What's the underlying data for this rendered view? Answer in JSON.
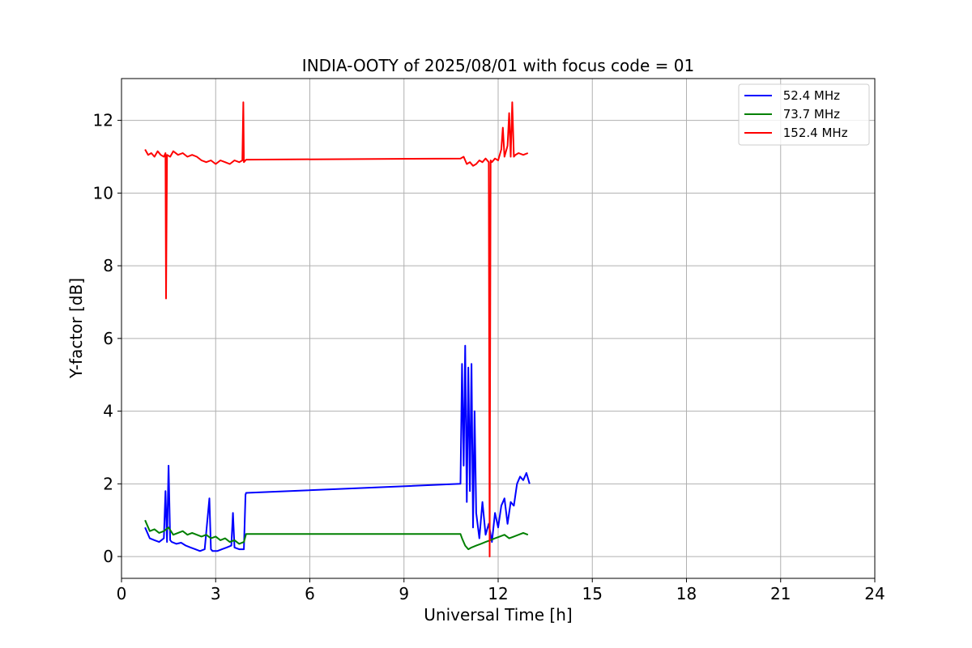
{
  "chart_data": {
    "type": "line",
    "title": "INDIA-OOTY of 2025/08/01 with focus code = 01",
    "xlabel": "Universal Time [h]",
    "ylabel": "Y-factor [dB]",
    "xlim": [
      0,
      24
    ],
    "ylim": [
      -0.6,
      13.15
    ],
    "xticks": [
      0,
      3,
      6,
      9,
      12,
      15,
      18,
      21,
      24
    ],
    "yticks": [
      0,
      2,
      4,
      6,
      8,
      10,
      12
    ],
    "grid": true,
    "legend_position": "upper right",
    "series": [
      {
        "name": " 52.4 MHz",
        "color": "#0000ff",
        "x": [
          0.75,
          0.9,
          1.05,
          1.2,
          1.35,
          1.4,
          1.45,
          1.5,
          1.55,
          1.6,
          1.75,
          1.9,
          2.05,
          2.2,
          2.35,
          2.5,
          2.65,
          2.8,
          2.85,
          2.9,
          3.05,
          3.2,
          3.35,
          3.5,
          3.55,
          3.6,
          3.75,
          3.9,
          3.95,
          3.97,
          10.8,
          10.85,
          10.9,
          10.95,
          11.0,
          11.05,
          11.1,
          11.15,
          11.2,
          11.25,
          11.3,
          11.4,
          11.5,
          11.6,
          11.7,
          11.8,
          11.9,
          12.0,
          12.1,
          12.2,
          12.3,
          12.4,
          12.5,
          12.6,
          12.7,
          12.8,
          12.9,
          13.0
        ],
        "y": [
          0.8,
          0.5,
          0.45,
          0.4,
          0.5,
          1.8,
          0.4,
          2.5,
          0.45,
          0.4,
          0.35,
          0.38,
          0.3,
          0.25,
          0.2,
          0.15,
          0.2,
          1.6,
          0.2,
          0.15,
          0.15,
          0.2,
          0.25,
          0.3,
          1.2,
          0.25,
          0.2,
          0.2,
          1.7,
          1.75,
          2.0,
          5.3,
          2.5,
          5.8,
          1.5,
          5.2,
          1.8,
          5.3,
          0.8,
          4.0,
          1.2,
          0.5,
          1.5,
          0.6,
          0.9,
          0.4,
          1.2,
          0.8,
          1.4,
          1.6,
          0.9,
          1.5,
          1.4,
          2.0,
          2.2,
          2.1,
          2.3,
          2.0
        ]
      },
      {
        "name": " 73.7 MHz",
        "color": "#008000",
        "x": [
          0.75,
          0.9,
          1.05,
          1.2,
          1.35,
          1.5,
          1.65,
          1.8,
          1.95,
          2.1,
          2.25,
          2.4,
          2.55,
          2.7,
          2.85,
          3.0,
          3.15,
          3.3,
          3.45,
          3.6,
          3.75,
          3.9,
          3.97,
          10.8,
          10.85,
          10.95,
          11.05,
          11.15,
          11.3,
          11.45,
          11.6,
          11.75,
          11.9,
          12.05,
          12.2,
          12.35,
          12.5,
          12.65,
          12.8,
          12.95
        ],
        "y": [
          1.0,
          0.7,
          0.75,
          0.65,
          0.7,
          0.8,
          0.6,
          0.65,
          0.7,
          0.6,
          0.65,
          0.6,
          0.55,
          0.6,
          0.5,
          0.55,
          0.45,
          0.5,
          0.4,
          0.45,
          0.35,
          0.4,
          0.62,
          0.62,
          0.5,
          0.3,
          0.2,
          0.25,
          0.3,
          0.35,
          0.4,
          0.45,
          0.5,
          0.55,
          0.6,
          0.5,
          0.55,
          0.6,
          0.65,
          0.6
        ]
      },
      {
        "name": " 152.4 MHz",
        "color": "#ff0000",
        "x": [
          0.75,
          0.85,
          0.95,
          1.05,
          1.15,
          1.25,
          1.35,
          1.4,
          1.42,
          1.45,
          1.55,
          1.65,
          1.8,
          1.95,
          2.1,
          2.25,
          2.4,
          2.55,
          2.7,
          2.85,
          3.0,
          3.15,
          3.3,
          3.45,
          3.6,
          3.75,
          3.85,
          3.88,
          3.9,
          3.97,
          10.8,
          10.9,
          11.0,
          11.1,
          11.2,
          11.3,
          11.4,
          11.5,
          11.6,
          11.7,
          11.73,
          11.76,
          11.8,
          11.9,
          12.0,
          12.1,
          12.15,
          12.2,
          12.3,
          12.35,
          12.4,
          12.45,
          12.5,
          12.55,
          12.65,
          12.8,
          12.95
        ],
        "y": [
          11.2,
          11.05,
          11.1,
          11.0,
          11.15,
          11.05,
          11.0,
          11.1,
          7.1,
          11.05,
          11.0,
          11.15,
          11.05,
          11.1,
          11.0,
          11.05,
          11.0,
          10.9,
          10.85,
          10.9,
          10.8,
          10.9,
          10.85,
          10.8,
          10.9,
          10.85,
          10.9,
          12.5,
          10.85,
          10.92,
          10.95,
          11.0,
          10.8,
          10.85,
          10.75,
          10.8,
          10.9,
          10.85,
          10.95,
          10.85,
          0.0,
          10.9,
          10.85,
          10.95,
          10.9,
          11.2,
          11.8,
          11.0,
          11.3,
          12.2,
          11.0,
          12.5,
          11.0,
          11.05,
          11.1,
          11.05,
          11.1
        ]
      }
    ]
  }
}
